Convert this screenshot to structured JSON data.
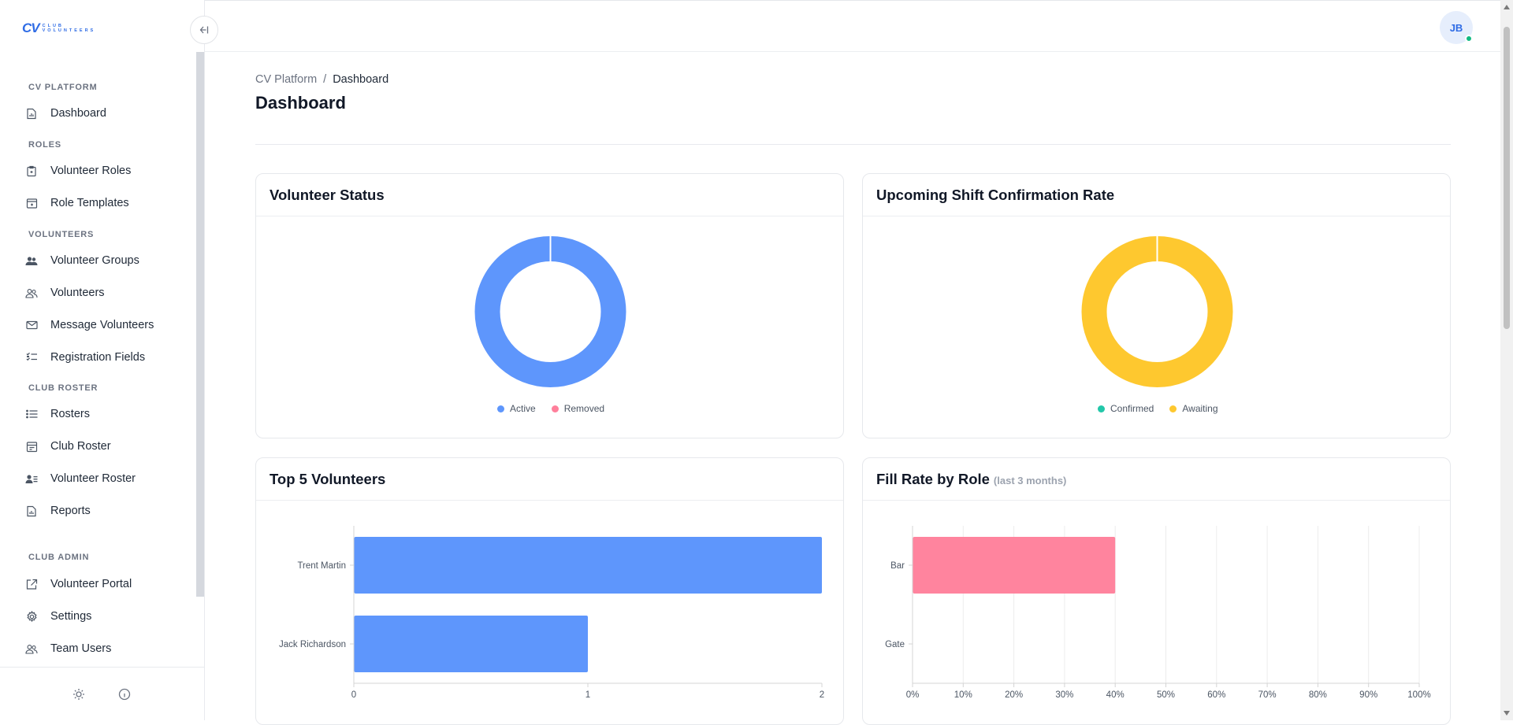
{
  "app": {
    "logo_text": "CV",
    "logo_sub_1": "CLUB",
    "logo_sub_2": "VOLUNTEERS"
  },
  "sidebar": {
    "collapse_icon": "collapse-left-icon",
    "sections": [
      {
        "label": "CV PLATFORM",
        "items": [
          {
            "label": "Dashboard",
            "icon": "chart-doc-icon"
          }
        ]
      },
      {
        "label": "ROLES",
        "items": [
          {
            "label": "Volunteer Roles",
            "icon": "clipboard-icon"
          },
          {
            "label": "Role Templates",
            "icon": "template-icon"
          }
        ]
      },
      {
        "label": "VOLUNTEERS",
        "items": [
          {
            "label": "Volunteer Groups",
            "icon": "users-icon"
          },
          {
            "label": "Volunteers",
            "icon": "users-outline-icon"
          },
          {
            "label": "Message Volunteers",
            "icon": "mail-icon"
          },
          {
            "label": "Registration Fields",
            "icon": "checklist-icon"
          }
        ]
      },
      {
        "label": "CLUB ROSTER",
        "items": [
          {
            "label": "Rosters",
            "icon": "list-icon"
          },
          {
            "label": "Club Roster",
            "icon": "calendar-icon"
          },
          {
            "label": "Volunteer Roster",
            "icon": "user-list-icon"
          },
          {
            "label": "Reports",
            "icon": "report-icon"
          }
        ]
      },
      {
        "label": "CLUB ADMIN",
        "items": [
          {
            "label": "Volunteer Portal",
            "icon": "external-link-icon"
          },
          {
            "label": "Settings",
            "icon": "gear-icon"
          },
          {
            "label": "Team Users",
            "icon": "team-icon"
          }
        ]
      }
    ]
  },
  "header": {
    "avatar_initials": "JB"
  },
  "breadcrumb": {
    "root": "CV Platform",
    "sep": "/",
    "current": "Dashboard"
  },
  "page": {
    "title": "Dashboard"
  },
  "cards": {
    "volunteer_status": {
      "title": "Volunteer Status"
    },
    "confirmation_rate": {
      "title": "Upcoming Shift Confirmation Rate"
    },
    "top_volunteers": {
      "title": "Top 5 Volunteers"
    },
    "fill_rate": {
      "title": "Fill Rate by Role",
      "note": "(last 3 months)"
    }
  },
  "chart_data": [
    {
      "type": "pie",
      "title": "Volunteer Status",
      "labels": [
        "Active",
        "Removed"
      ],
      "values": [
        1,
        0
      ],
      "colors": [
        "#5e96fc",
        "#ff7f9b"
      ],
      "legend": "bottom"
    },
    {
      "type": "pie",
      "title": "Upcoming Shift Confirmation Rate",
      "labels": [
        "Confirmed",
        "Awaiting"
      ],
      "values": [
        0,
        1
      ],
      "colors": [
        "#22c7a9",
        "#fec82f"
      ],
      "legend": "bottom"
    },
    {
      "type": "bar",
      "orientation": "horizontal",
      "title": "Top 5 Volunteers",
      "categories": [
        "Trent Martin",
        "Jack Richardson"
      ],
      "values": [
        2,
        1
      ],
      "xlim": [
        0,
        2
      ],
      "xticks": [
        "0",
        "1",
        "2"
      ],
      "color": "#5e96fc",
      "grid": false
    },
    {
      "type": "bar",
      "orientation": "horizontal",
      "title": "Fill Rate by Role",
      "categories": [
        "Bar",
        "Gate"
      ],
      "values": [
        40,
        0
      ],
      "xlim": [
        0,
        100
      ],
      "xticks": [
        "0%",
        "10%",
        "20%",
        "30%",
        "40%",
        "50%",
        "60%",
        "70%",
        "80%",
        "90%",
        "100%"
      ],
      "color": "#ff849e",
      "grid": true
    }
  ]
}
